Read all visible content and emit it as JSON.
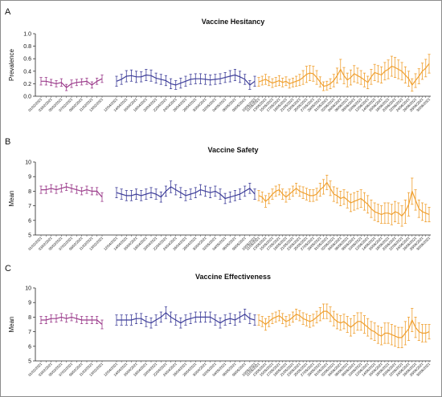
{
  "colors": {
    "pre": "#9b3b8b",
    "mid": "#3f3f9a",
    "post": "#f0a030",
    "axis": "#222222"
  },
  "chart_data": [
    {
      "panel": "A",
      "type": "line",
      "title": "Vaccine Hesitancy",
      "ylabel": "Prevalence",
      "ylim": [
        0,
        1.0
      ],
      "yticks": [
        0,
        0.2,
        0.4,
        0.6,
        0.8,
        1.0
      ],
      "ytick_labels": [
        "0.0",
        "0.2",
        "0.4",
        "0.6",
        "0.8",
        "1.0"
      ],
      "grid": false,
      "series": [
        {
          "color_key": "pre",
          "x": [
            "01/02/2021",
            "02/02/2021",
            "03/02/2021",
            "04/02/2021",
            "05/02/2021",
            "06/02/2021",
            "07/02/2021",
            "08/02/2021",
            "09/02/2021",
            "10/02/2021",
            "11/02/2021",
            "12/02/2021",
            "13/02/2021"
          ],
          "values": [
            0.24,
            0.24,
            0.22,
            0.2,
            0.22,
            0.14,
            0.2,
            0.22,
            0.23,
            0.24,
            0.18,
            0.24,
            0.28
          ],
          "err": [
            0.06,
            0.06,
            0.05,
            0.05,
            0.06,
            0.05,
            0.06,
            0.05,
            0.05,
            0.05,
            0.05,
            0.05,
            0.06
          ]
        },
        {
          "color_key": "mid",
          "x": [
            "12/04/2021",
            "13/04/2021",
            "14/04/2021",
            "15/04/2021",
            "16/04/2021",
            "17/04/2021",
            "18/04/2021",
            "19/04/2021",
            "20/04/2021",
            "21/04/2021",
            "22/04/2021",
            "23/04/2021",
            "24/04/2021",
            "25/04/2021",
            "26/04/2021",
            "27/04/2021",
            "28/04/2021",
            "29/04/2021",
            "30/04/2021",
            "01/05/2021",
            "02/05/2021",
            "03/05/2021",
            "04/05/2021",
            "05/05/2021",
            "06/05/2021",
            "07/05/2021",
            "08/05/2021",
            "09/05/2021",
            "10/05/2021"
          ],
          "values": [
            0.24,
            0.27,
            0.32,
            0.33,
            0.31,
            0.31,
            0.34,
            0.33,
            0.29,
            0.27,
            0.25,
            0.2,
            0.18,
            0.21,
            0.24,
            0.27,
            0.28,
            0.28,
            0.27,
            0.26,
            0.27,
            0.28,
            0.3,
            0.32,
            0.34,
            0.31,
            0.27,
            0.18,
            0.24
          ],
          "err": [
            0.08,
            0.08,
            0.09,
            0.09,
            0.09,
            0.08,
            0.09,
            0.09,
            0.08,
            0.08,
            0.08,
            0.08,
            0.07,
            0.08,
            0.08,
            0.08,
            0.08,
            0.08,
            0.08,
            0.08,
            0.08,
            0.08,
            0.08,
            0.09,
            0.09,
            0.09,
            0.08,
            0.07,
            0.08
          ]
        },
        {
          "color_key": "post",
          "x": [
            "11/05/2021",
            "12/05/2021",
            "13/05/2021",
            "14/05/2021",
            "15/05/2021",
            "16/05/2021",
            "17/05/2021",
            "18/05/2021",
            "19/05/2021",
            "20/05/2021",
            "21/05/2021",
            "22/05/2021",
            "23/05/2021",
            "24/05/2021",
            "25/05/2021",
            "26/05/2021",
            "27/05/2021",
            "28/05/2021",
            "29/05/2021",
            "30/05/2021",
            "31/05/2021",
            "01/06/2021",
            "02/06/2021",
            "03/06/2021",
            "04/06/2021",
            "05/06/2021",
            "06/06/2021",
            "07/06/2021",
            "08/06/2021",
            "09/06/2021",
            "10/06/2021",
            "11/06/2021",
            "12/06/2021",
            "13/06/2021",
            "14/06/2021",
            "15/06/2021",
            "16/06/2021",
            "17/06/2021",
            "18/06/2021",
            "19/06/2021",
            "20/06/2021",
            "21/06/2021",
            "22/06/2021",
            "23/06/2021",
            "24/06/2021",
            "25/06/2021",
            "26/06/2021",
            "27/06/2021",
            "28/06/2021",
            "29/06/2021",
            "30/06/2021"
          ],
          "values": [
            0.23,
            0.25,
            0.27,
            0.24,
            0.21,
            0.23,
            0.25,
            0.22,
            0.24,
            0.2,
            0.22,
            0.24,
            0.26,
            0.3,
            0.35,
            0.37,
            0.36,
            0.3,
            0.23,
            0.16,
            0.17,
            0.2,
            0.25,
            0.33,
            0.43,
            0.33,
            0.26,
            0.3,
            0.36,
            0.33,
            0.3,
            0.26,
            0.22,
            0.31,
            0.38,
            0.36,
            0.34,
            0.4,
            0.43,
            0.48,
            0.46,
            0.43,
            0.4,
            0.34,
            0.28,
            0.18,
            0.25,
            0.32,
            0.4,
            0.45,
            0.52
          ],
          "err": [
            0.07,
            0.07,
            0.08,
            0.07,
            0.07,
            0.07,
            0.08,
            0.07,
            0.07,
            0.07,
            0.07,
            0.08,
            0.09,
            0.11,
            0.13,
            0.12,
            0.12,
            0.11,
            0.08,
            0.07,
            0.07,
            0.08,
            0.1,
            0.12,
            0.16,
            0.13,
            0.11,
            0.12,
            0.13,
            0.12,
            0.11,
            0.11,
            0.1,
            0.12,
            0.13,
            0.13,
            0.13,
            0.14,
            0.15,
            0.16,
            0.16,
            0.15,
            0.14,
            0.13,
            0.12,
            0.1,
            0.11,
            0.12,
            0.13,
            0.14,
            0.15
          ]
        }
      ]
    },
    {
      "panel": "B",
      "type": "line",
      "title": "Vaccine Safety",
      "ylabel": "Mean",
      "ylim": [
        5,
        10
      ],
      "yticks": [
        5,
        6,
        7,
        8,
        9,
        10
      ],
      "ytick_labels": [
        "5",
        "6",
        "7",
        "8",
        "9",
        "10"
      ],
      "grid": false,
      "series": [
        {
          "color_key": "pre",
          "values": [
            8.1,
            8.1,
            8.2,
            8.1,
            8.2,
            8.3,
            8.2,
            8.1,
            8.0,
            8.1,
            8.0,
            8.0,
            7.6
          ],
          "err": [
            0.25,
            0.25,
            0.25,
            0.25,
            0.25,
            0.25,
            0.25,
            0.25,
            0.25,
            0.25,
            0.25,
            0.25,
            0.3
          ]
        },
        {
          "color_key": "mid",
          "values": [
            7.9,
            7.8,
            7.7,
            7.7,
            7.8,
            7.7,
            7.8,
            7.9,
            7.8,
            7.6,
            8.0,
            8.3,
            8.1,
            7.9,
            7.7,
            7.8,
            7.9,
            8.1,
            8.0,
            7.9,
            8.0,
            7.8,
            7.5,
            7.6,
            7.7,
            7.8,
            8.0,
            8.2,
            7.8
          ],
          "err": [
            0.35,
            0.35,
            0.35,
            0.35,
            0.35,
            0.35,
            0.35,
            0.35,
            0.35,
            0.35,
            0.35,
            0.4,
            0.35,
            0.35,
            0.35,
            0.35,
            0.35,
            0.35,
            0.35,
            0.35,
            0.35,
            0.35,
            0.35,
            0.35,
            0.35,
            0.35,
            0.35,
            0.35,
            0.35
          ]
        },
        {
          "color_key": "post",
          "values": [
            7.7,
            7.6,
            7.3,
            7.5,
            7.8,
            8.0,
            8.1,
            7.8,
            7.6,
            7.8,
            8.0,
            8.2,
            8.0,
            7.9,
            7.8,
            7.7,
            7.7,
            7.8,
            8.1,
            8.3,
            8.6,
            8.2,
            7.8,
            7.7,
            7.5,
            7.6,
            7.4,
            7.2,
            7.3,
            7.4,
            7.5,
            7.3,
            7.1,
            6.8,
            6.6,
            6.5,
            6.4,
            6.5,
            6.5,
            6.4,
            6.6,
            6.5,
            6.3,
            6.6,
            7.1,
            8.0,
            7.4,
            6.8,
            6.6,
            6.5,
            6.4
          ],
          "err": [
            0.35,
            0.35,
            0.4,
            0.35,
            0.35,
            0.35,
            0.35,
            0.35,
            0.35,
            0.35,
            0.35,
            0.35,
            0.35,
            0.4,
            0.4,
            0.4,
            0.4,
            0.4,
            0.45,
            0.5,
            0.5,
            0.5,
            0.5,
            0.5,
            0.5,
            0.5,
            0.55,
            0.6,
            0.6,
            0.6,
            0.6,
            0.6,
            0.6,
            0.6,
            0.6,
            0.6,
            0.6,
            0.7,
            0.7,
            0.7,
            0.7,
            0.7,
            0.7,
            0.8,
            0.8,
            0.9,
            0.7,
            0.6,
            0.6,
            0.6,
            0.5
          ]
        }
      ]
    },
    {
      "panel": "C",
      "type": "line",
      "title": "Vaccine Effectiveness",
      "ylabel": "Mean",
      "ylim": [
        5,
        10
      ],
      "yticks": [
        5,
        6,
        7,
        8,
        9,
        10
      ],
      "ytick_labels": [
        "5",
        "6",
        "7",
        "8",
        "9",
        "10"
      ],
      "grid": false,
      "series": [
        {
          "color_key": "pre",
          "values": [
            7.8,
            7.8,
            7.9,
            7.9,
            8.0,
            7.9,
            8.0,
            7.9,
            7.8,
            7.8,
            7.8,
            7.8,
            7.5
          ],
          "err": [
            0.25,
            0.25,
            0.25,
            0.25,
            0.25,
            0.25,
            0.25,
            0.25,
            0.25,
            0.25,
            0.25,
            0.25,
            0.3
          ]
        },
        {
          "color_key": "mid",
          "values": [
            7.8,
            7.8,
            7.8,
            7.8,
            7.9,
            7.9,
            7.7,
            7.6,
            7.8,
            8.0,
            8.3,
            8.0,
            7.8,
            7.6,
            7.8,
            7.9,
            8.0,
            8.0,
            8.0,
            8.0,
            7.8,
            7.6,
            7.8,
            7.9,
            7.8,
            8.0,
            8.2,
            7.9,
            7.8
          ],
          "err": [
            0.35,
            0.35,
            0.35,
            0.35,
            0.35,
            0.35,
            0.35,
            0.35,
            0.35,
            0.35,
            0.4,
            0.35,
            0.35,
            0.35,
            0.35,
            0.35,
            0.35,
            0.35,
            0.35,
            0.35,
            0.35,
            0.35,
            0.35,
            0.35,
            0.35,
            0.35,
            0.35,
            0.35,
            0.35
          ]
        },
        {
          "color_key": "post",
          "values": [
            7.8,
            7.7,
            7.5,
            7.7,
            7.9,
            8.0,
            8.1,
            7.9,
            7.7,
            7.8,
            8.0,
            8.2,
            8.1,
            7.9,
            7.8,
            7.7,
            7.8,
            8.0,
            8.2,
            8.4,
            8.4,
            8.2,
            7.9,
            7.7,
            7.6,
            7.7,
            7.5,
            7.3,
            7.5,
            7.7,
            7.7,
            7.5,
            7.3,
            7.1,
            7.0,
            6.8,
            6.7,
            6.9,
            6.9,
            6.8,
            6.7,
            6.6,
            6.6,
            6.9,
            7.2,
            7.8,
            7.3,
            7.0,
            6.9,
            6.9,
            7.0
          ],
          "err": [
            0.35,
            0.35,
            0.4,
            0.35,
            0.35,
            0.35,
            0.35,
            0.35,
            0.35,
            0.35,
            0.35,
            0.35,
            0.35,
            0.4,
            0.4,
            0.4,
            0.4,
            0.4,
            0.45,
            0.5,
            0.5,
            0.5,
            0.5,
            0.5,
            0.5,
            0.5,
            0.55,
            0.6,
            0.6,
            0.6,
            0.6,
            0.6,
            0.6,
            0.6,
            0.6,
            0.6,
            0.6,
            0.7,
            0.7,
            0.7,
            0.7,
            0.7,
            0.7,
            0.8,
            0.8,
            0.8,
            0.7,
            0.6,
            0.6,
            0.6,
            0.5
          ]
        }
      ]
    }
  ]
}
